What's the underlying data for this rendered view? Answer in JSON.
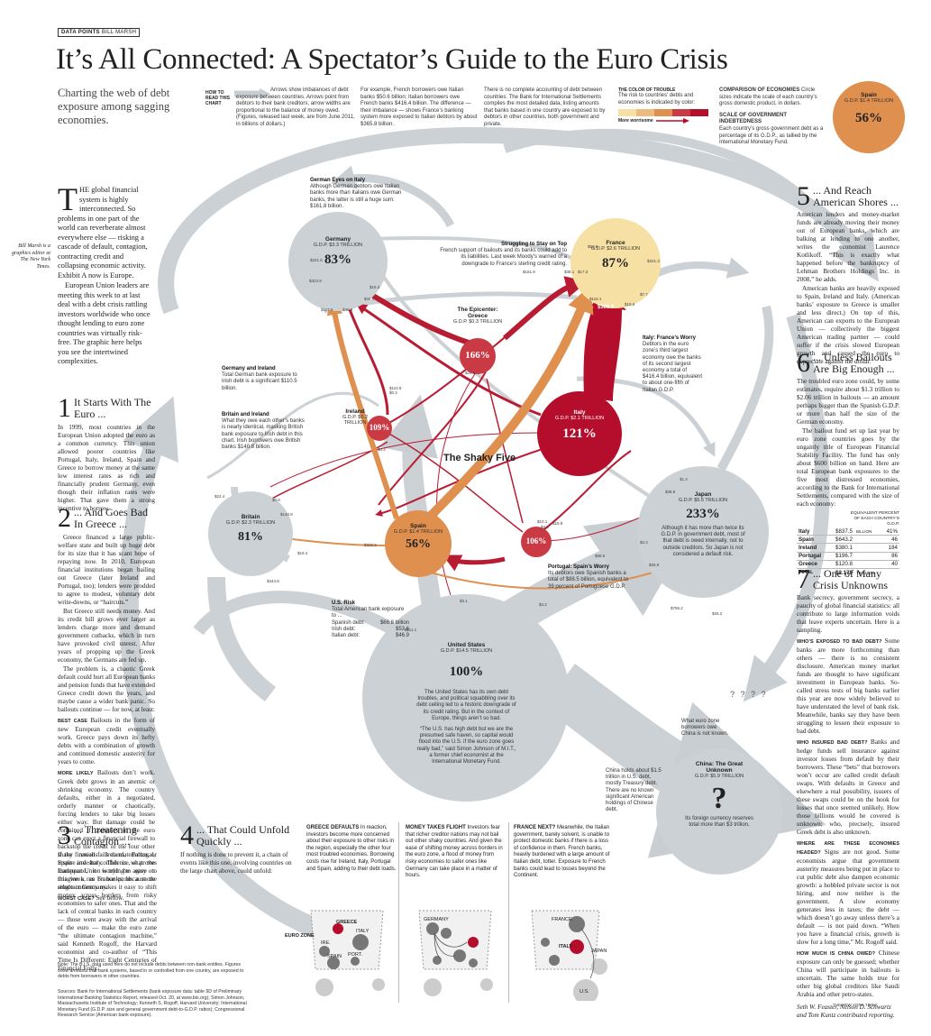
{
  "header": {
    "kicker": "DATA POINTS",
    "byline_tag": "BILL MARSH",
    "title": "It’s All Connected: A Spectator’s Guide to the Euro Crisis",
    "subtitle": "Charting the web of debt exposure among sagging economies."
  },
  "howto": {
    "label": "HOW TO READ THIS CHART",
    "col1": "Arrows show imbalances of debt exposure between countries. Arrows point from debtors to their bank creditors; arrow widths are proportional to the balance of money owed. (Figures, released last week, are from June 2011, in billions of dollars.)",
    "col2": "For example, French borrowers owe Italian banks $50.6 billion; Italian borrowers owe French banks $416.4 billion. The difference — their imbalance — shows France’s banking system more exposed to Italian debtors by about $365.8 billion.",
    "col3": "There is no complete accounting of debt between countries. The Bank for International Settlements compiles the most detailed data, listing amounts that banks based in one country are exposed to by debtors in other countries, both government and private.",
    "color_head": "THE COLOR OF TROUBLE",
    "color_text": "The risk to countries’ debts and economies is indicated by color:",
    "color_more": "More worrisome",
    "colors": [
      "#f6e0a4",
      "#edbb7e",
      "#df8f4e",
      "#c93a44",
      "#b50d2c"
    ],
    "compare_head": "COMPARISON OF ECONOMIES",
    "compare_text": "Circle sizes indicate the scale of each country’s gross domestic product, in dollars.",
    "scale_head": "SCALE OF GOVERNMENT INDEBTEDNESS",
    "scale_text": "Each country’s gross government debt as a percentage of its G.D.P., as tallied by the International Monetary Fund.",
    "sample_name": "Spain",
    "sample_gdp": "G.D.P. $1.4 TRILLION",
    "sample_pct": "56%"
  },
  "intro": {
    "dropcap": "T",
    "p1": "HE global financial system is highly interconnected. So problems in one part of the world can reverberate almost everywhere else — risking a cascade of default, contagion, contracting credit and collapsing economic activity. Exhibit A now is Europe.",
    "p2": "European Union leaders are meeting this week to at last deal with a debt crisis rattling investors worldwide who once thought lending to euro zone countries was virtually risk-free. The graphic here helps you see the intertwined complexities.",
    "author_note": "Bill Marsh is a graphics editor at The New York Times."
  },
  "sections": {
    "s1": {
      "num": "1",
      "head": "It Starts With The Euro ...",
      "body": "In 1999, most countries in the European Union adopted the euro as a common currency. This union allowed poorer countries like Portugal, Italy, Ireland, Spain and Greece to borrow money at the same low interest rates as rich and financially prudent Germany, even though their inflation rates were higher. That gave them a strong incentive to borrow."
    },
    "s2": {
      "num": "2",
      "head": "... And Goes Bad In Greece ...",
      "p1": "Greece financed a large public-welfare state and built up huge debt for its size that it has scant hope of repaying now. In 2010, European financial institutions began bailing out Greece (later Ireland and Portugal, too); lenders were prodded to agree to modest, voluntary debt write-downs, or “haircuts.”",
      "p2": "But Greece still needs money. And its credit bill grows ever larger as lenders charge more and demand government cutbacks, which in turn have provoked civil unrest. After years of propping up the Greek economy, the Germans are fed up.",
      "p3": "The problem is, a chaotic Greek default could hurt all European banks and pension funds that have extended Greece credit down the years, and maybe cause a wider bank panic. So bailouts continue — for now, at least:",
      "best_label": "BEST CASE",
      "best": "Bailouts in the form of new European credit eventually work. Greece pays down its hefty debts with a combination of growth and continued domestic austerity for years to come.",
      "likely_label": "MORE LIKELY",
      "likely": "Bailouts don’t work. Greek debt grows in an anemic or shrinking economy. The country defaults, either in a negotiated, orderly manner or chaotically, forcing lenders to take big losses either way. But damage could be contained if countries in the euro zone can erect a financial firewall to backstop the credit of the four other shaky nations: Ireland, Portugal, Spain and Italy. This is what the European Union is trying to agree on this week, as France prods a more reluctant Germany.",
      "worst_label": "WORST CASE?",
      "worst": "See below."
    },
    "s3": {
      "num": "3",
      "head": "... Threatening Contagion ...",
      "body": "If the firewall fails to materialize, or inspire investor confidence, or proves inadequate, it would be easy to imagine a run on banks, because the single currency makes it easy to shift money across borders from risky economies to safer ones. That and the lack of central banks in each country — those went away with the arrival of the euro — make the euro zone “the ultimate contagion machine,” said Kenneth Rogoff, the Harvard economist and co-author of “This Time Is Different: Eight Centuries of Financial Folly.”"
    },
    "s4": {
      "num": "4",
      "head": "... That Could Unfold Quickly ...",
      "body": "If nothing is done to prevent it, a chain of events like this one, involving countries on the large chart above, could unfold:"
    },
    "s5": {
      "num": "5",
      "head": "... And Reach American Shores ...",
      "p1": "American lenders and money-market funds are already moving their money out of European banks, which are balking at lending to one another, writes the economist Laurence Kotlikoff. “This is exactly what happened before the bankruptcy of Lehman Brothers Holdings Inc. in 2008,” he adds.",
      "p2": "American banks are heavily exposed to Spain, Ireland and Italy. (American banks’ exposure to Greece is smaller and less direct.) On top of this, American can exports to the European Union — collectively the biggest American trading partner — could suffer if the crisis slowed European growth and caused the euro to depreciate against the dollar."
    },
    "s6": {
      "num": "6",
      "head": "... Unless Bailouts Are Big Enough ...",
      "p1": "The troubled euro zone could, by some estimates, require about $1.3 trillion to $2.06 trillion in bailouts — an amount perhaps bigger than the Spanish G.D.P. or more than half the size of the German economy.",
      "p2": "The bailout fund set up last year by euro zone countries goes by the ungainly title of European Financial Stability Facility. The fund has only about $600 billion on hand. Here are total European bank exposures to the five most distressed economies, according to the Bank for International Settlements, compared with the size of each economy:"
    },
    "s7": {
      "num": "7",
      "head": "... One of Many Crisis Unknowns",
      "p1": "Bank secrecy, government secrecy, a paucity of global financial statistics: all contribute to large information voids that leave experts uncertain. Here is a sampling.",
      "q1": "WHO’S EXPOSED TO BAD DEBT?",
      "a1": "Some banks are more forthcoming than others — there is no consistent disclosure. American money market funds are thought to have significant investment in European banks. So-called stress tests of big banks earlier this year are now widely believed to have understated the level of bank risk. Meanwhile, banks say they have been struggling to lessen their exposure to bad debt.",
      "q2": "WHO INSURED BAD DEBT?",
      "a2": "Banks and hedge funds sell insurance against investor losses from default by their borrowers. These “bets” that borrowers won’t occur are called credit default swaps. With defaults in Greece and elsewhere a real possibility, issuers of these swaps could be on the hook for losses that once seemed unlikely. How those billions would be covered is unknown; who, precisely, insured Greek debt is also unknown.",
      "q3": "WHERE ARE THESE ECONOMIES HEADED?",
      "a3": "Signs are not good. Some economists argue that government austerity measures being put in place to cut public debt also dampen economic growth: a hobbled private sector is not hiring, and now neither is the government. A slow economy generates less in taxes; the debt — which doesn’t go away unless there’s a default — is not paid down. “When you have a financial crisis, growth is slow for a long time,” Mr. Rogoff said.",
      "q4": "HOW MUCH IS CHINA OWED?",
      "a4": "Chinese exposure can only be guessed; whether China will participate in bailouts is uncertain. The same holds true for other big global creditors like Saudi Arabia and other petro-states.",
      "credits": "Seth W. Feaster, Nelson D. Schwartz and Tom Kuntz contributed reporting."
    }
  },
  "exposure_table": {
    "col_head": "EQUIVALENT PERCENT OF EACH COUNTRY’S G.D.P.",
    "rows": [
      {
        "country": "Italy",
        "amount": "$837.5",
        "unit": "BILLION",
        "pct": "41%"
      },
      {
        "country": "Spain",
        "amount": "$643.2",
        "unit": "",
        "pct": "46"
      },
      {
        "country": "Ireland",
        "amount": "$380.1",
        "unit": "",
        "pct": "184"
      },
      {
        "country": "Portugal",
        "amount": "$196.7",
        "unit": "",
        "pct": "86"
      },
      {
        "country": "Greece",
        "amount": "$120.8",
        "unit": "",
        "pct": "40"
      }
    ],
    "total_label": "TOTAL",
    "total": "$2.178",
    "total_unit": "TRILLION"
  },
  "nodes": {
    "germany": {
      "name": "Germany",
      "gdp": "G.D.P. $3.3 TRILLION",
      "pct": "83%"
    },
    "france": {
      "name": "France",
      "gdp": "G.D.P. $2.6 TRILLION",
      "pct": "87%"
    },
    "greece": {
      "name": "The Epicenter: Greece",
      "gdp": "G.D.P. $0.3 TRILLION",
      "pct": "166%"
    },
    "italy": {
      "name": "Italy",
      "gdp": "G.D.P. $2.1 TRILLION",
      "pct": "121%"
    },
    "ireland": {
      "name": "Ireland",
      "gdp": "G.D.P. $0.2 TRILLION",
      "pct": "109%"
    },
    "britain": {
      "name": "Britain",
      "gdp": "G.D.P. $2.3 TRILLION",
      "pct": "81%"
    },
    "spain": {
      "name": "Spain",
      "gdp": "G.D.P. $1.4 TRILLION",
      "pct": "56%"
    },
    "portugal": {
      "name": "Portugal",
      "pct": "106%"
    },
    "japan": {
      "name": "Japan",
      "gdp": "G.D.P. $5.5 TRILLION",
      "pct": "233%"
    },
    "us": {
      "name": "United States",
      "gdp": "G.D.P. $14.5 TRILLION",
      "pct": "100%"
    },
    "china": {
      "name": "China: The Great Unknown",
      "gdp": "G.D.P. $5.9 TRILLION",
      "pct": "?"
    }
  },
  "annotations": {
    "german_eyes_head": "German Eyes on Italy",
    "german_eyes": "Although German debtors owe Italian banks more than Italians owe German banks, the latter is still a huge sum: $161.8 billion.",
    "struggling_head": "Struggling to Stay on Top",
    "struggling": "French support of bailouts and its banks could add to its liabilities. Last week Moody’s warned of a downgrade to France’s sterling credit rating.",
    "italy_head": "Italy: France’s Worry",
    "italy_worry": "Debtors in the euro zone’s third largest economy owe the banks of its second largest economy a total of $416.4 billion, equivalent to about one-fifth of Italian G.D.P.",
    "gi_head": "Germany and Ireland",
    "gi": "Total German bank exposure to Irish debt is a significant $110.5 billion.",
    "bi_head": "Britain and Ireland",
    "bi": "What they owe each other’s banks is nearly identical, masking British bank exposure to Irish debt in this chart. Irish borrowers owe British banks $140.8 billion.",
    "shaky_five": "The Shaky Five",
    "us_risk_head": "U.S. Risk",
    "us_risk": "Total American bank exposure to ...",
    "us_risk_rows": [
      {
        "label": "Spanish debt:",
        "value": "$66.8 billion"
      },
      {
        "label": "Irish debt:",
        "value": "$53.6"
      },
      {
        "label": "Italian debt:",
        "value": "$46.9"
      }
    ],
    "japan_note": "Although it has more than twice its G.D.P. in government debt, most of that debt is owed internally, not to outside creditors. So Japan is not considered a default risk.",
    "portugal_head": "Portugal: Spain’s Worry",
    "portugal_note": "Its debtors owe Spanish banks a total of $88.5 billion, equivalent to 39 percent of Portuguese G.D.P.",
    "us_note1": "The United States has its own debt troubles, and political squabbling over its debt ceiling led to a historic downgrade of its credit rating. But in the context of Europe, things aren’t so bad.",
    "us_note2": "“The U.S. has high debt but we are the presumed safe haven, so capital would flood into the U.S. if the euro zone goes really bad,” said Simon Johnson of M.I.T., a former chief economist at the International Monetary Fund.",
    "china_holds": "China holds about $1.5 trillion in U.S. debt, mostly Treasury debt. There are no known significant American holdings of Chinese debt.",
    "china_reserves": "Its foreign currency reserves total more than $3 trillion.",
    "euro_borrowers": "What euro zone borrowers owe China is not known.",
    "qmarks": "? ? ? ?",
    "big_arrow": "$365.8"
  },
  "flow_values": [
    "$53.8",
    "$17.3",
    "$118.1",
    "$18.6",
    "$321.3",
    "$7.7",
    "$161.8",
    "$38.1",
    "$321.5",
    "$117.6",
    "$46.9",
    "$19.3",
    "$32.5",
    "$323.9",
    "$26.0",
    "$110.5",
    "$0.3",
    "$4.4",
    "$22.4",
    "$0.8",
    "$140.8",
    "$325.9",
    "$19.4",
    "$344.8",
    "$111.1",
    "$3.1",
    "$3.2",
    "$41.8",
    "$10.1",
    "$4.2",
    "$18.9",
    "$2.2",
    "$25.9",
    "$38.8",
    "$1.4",
    "$88.5",
    "$795.2",
    "$26.2"
  ],
  "scenarios": {
    "greece_head": "GREECE DEFAULTS",
    "greece": "In reaction, investors become more concerned about their exposure to other risks in the region, especially the other four most troubled economies. Borrowing costs rise for Ireland, Italy, Portugal and Spain, adding to their debt loads.",
    "flight_head": "MONEY TAKES FLIGHT",
    "flight": "Investors fear that richer creditor nations may not bail out other shaky countries. And given the ease of shifting money across borders in the euro zone, a flood of money from risky economies to safer ones like Germany can take place in a matter of hours.",
    "france_head": "FRANCE NEXT?",
    "france": "Meanwhile, the Italian government, barely solvent, is unable to protect domestic banks if there is a loss of confidence in them. French banks, heavily burdened with a large amount of Italian debt, totter. Exposure to French banks could lead to losses beyond the Continent.",
    "euro_zone": "EURO ZONE",
    "greece_lbl": "GREECE",
    "ire": "IRE.",
    "italy": "ITALY",
    "spain": "SPAIN",
    "port": "PORT.",
    "germany": "GERMANY",
    "france_lbl": "FRANCE",
    "italy2": "ITALY",
    "japan": "JAPAN",
    "us": "U.S."
  },
  "footer": {
    "note": "Note: The B.I.S. data used here do not include debts between non-bank entities. Figures show amounts that bank systems, based in or controlled from one country, are exposed to debts from borrowers in other countries.",
    "sources": "Sources: Bank for International Settlements (bank exposure data: table 9D of Preliminary International Banking Statistics Report, released Oct. 20, at www.bis.org); Simon Johnson, Massachusetts Institute of Technology; Kenneth S. Rogoff, Harvard University; International Monetary Fund (G.D.P. size and general government debt-to-G.D.P. ratios); Congressional Research Service (American bank exposure).",
    "nyt": "THE NEW YORK TIMES"
  }
}
